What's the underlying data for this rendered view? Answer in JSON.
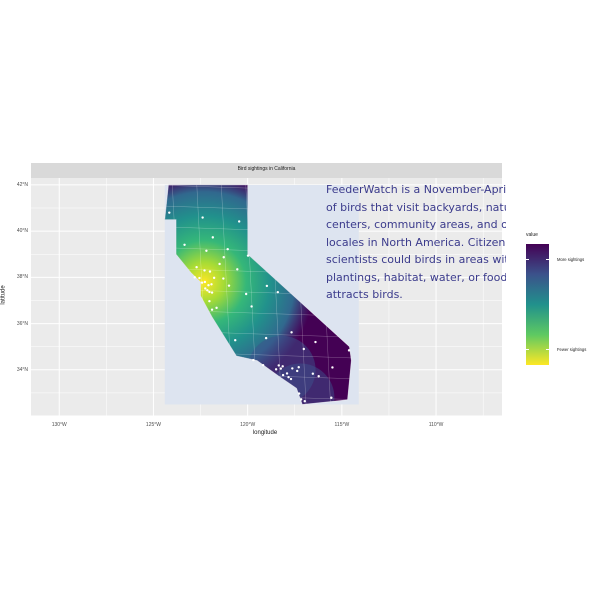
{
  "title": "Bird sightings in California",
  "annotation": "FeederWatch is a November-April sur\nof birds that visit backyards, nature\ncenters, community areas, and other\nlocales in North America. Citizen\nscientists could birds in areas with\nplantings, habitat, water, or food that\nattracts birds.",
  "axes": {
    "x_title": "longitude",
    "y_title": "latitude",
    "x_ticks": [
      "130°W",
      "125°W",
      "120°W",
      "115°W",
      "110°W"
    ],
    "y_ticks": [
      "42°N",
      "40°N",
      "38°N",
      "36°N",
      "34°N"
    ]
  },
  "legend": {
    "title": "value",
    "labels": [
      "More sightings",
      "Fewer sightings"
    ],
    "colors": [
      "#440154",
      "#3b528b",
      "#21918c",
      "#5ec962",
      "#fde725"
    ]
  },
  "colors": {
    "panel_background": "#ebebeb",
    "bbox_fill": "#dde4f0",
    "point_color": "#ffffff"
  },
  "chart_data": {
    "type": "heatmap",
    "title": "Bird sightings in California",
    "xlabel": "longitude",
    "ylabel": "latitude",
    "xlim": [
      -131.5,
      -106.5
    ],
    "ylim": [
      32,
      42.3
    ],
    "bbox": {
      "lon": [
        -124.4,
        -114.1
      ],
      "lat": [
        32.5,
        42.0
      ]
    },
    "hotspot": {
      "lon": -122.3,
      "lat": 37.8
    },
    "secondary_hotspots": [
      {
        "lon": -118.2,
        "lat": 34.0
      },
      {
        "lon": -117.2,
        "lat": 32.8
      }
    ],
    "state_outline": [
      [
        -124.2,
        42.0
      ],
      [
        -120.0,
        42.0
      ],
      [
        -120.0,
        39.0
      ],
      [
        -114.6,
        35.0
      ],
      [
        -114.5,
        34.4
      ],
      [
        -114.7,
        32.7
      ],
      [
        -117.1,
        32.5
      ],
      [
        -117.4,
        33.2
      ],
      [
        -118.3,
        33.7
      ],
      [
        -119.5,
        34.4
      ],
      [
        -120.6,
        34.6
      ],
      [
        -121.9,
        36.3
      ],
      [
        -122.5,
        37.2
      ],
      [
        -122.5,
        37.8
      ],
      [
        -123.0,
        38.2
      ],
      [
        -123.8,
        39.0
      ],
      [
        -123.8,
        40.5
      ],
      [
        -124.4,
        40.5
      ],
      [
        -124.2,
        42.0
      ]
    ],
    "sightings": [
      [
        -122.27,
        37.8
      ],
      [
        -122.42,
        37.77
      ],
      [
        -121.89,
        37.34
      ],
      [
        -122.03,
        37.37
      ],
      [
        -122.14,
        37.44
      ],
      [
        -121.49,
        38.58
      ],
      [
        -122.71,
        38.44
      ],
      [
        -122.29,
        38.3
      ],
      [
        -122.81,
        38.0
      ],
      [
        -122.56,
        37.97
      ],
      [
        -121.29,
        37.95
      ],
      [
        -120.99,
        37.64
      ],
      [
        -119.79,
        36.74
      ],
      [
        -119.02,
        35.37
      ],
      [
        -118.24,
        34.05
      ],
      [
        -118.49,
        34.02
      ],
      [
        -118.14,
        34.15
      ],
      [
        -117.91,
        33.84
      ],
      [
        -117.83,
        33.68
      ],
      [
        -117.16,
        32.72
      ],
      [
        -117.27,
        32.97
      ],
      [
        -117.37,
        33.95
      ],
      [
        -117.29,
        34.11
      ],
      [
        -116.54,
        33.83
      ],
      [
        -119.7,
        34.42
      ],
      [
        -119.18,
        34.2
      ],
      [
        -120.66,
        35.28
      ],
      [
        -121.89,
        36.6
      ],
      [
        -121.65,
        36.68
      ],
      [
        -122.03,
        36.97
      ],
      [
        -121.85,
        39.73
      ],
      [
        -122.39,
        40.59
      ],
      [
        -124.16,
        40.8
      ],
      [
        -120.45,
        40.42
      ],
      [
        -121.27,
        38.87
      ],
      [
        -120.55,
        38.35
      ],
      [
        -119.98,
        38.94
      ],
      [
        -118.4,
        37.36
      ],
      [
        -117.02,
        34.9
      ],
      [
        -115.56,
        32.79
      ],
      [
        -116.97,
        32.64
      ],
      [
        -117.7,
        33.6
      ],
      [
        -118.12,
        33.77
      ],
      [
        -118.35,
        34.19
      ],
      [
        -121.92,
        37.7
      ],
      [
        -122.08,
        37.66
      ],
      [
        -122.25,
        37.52
      ],
      [
        -121.78,
        37.98
      ],
      [
        -122.0,
        38.25
      ],
      [
        -123.35,
        39.41
      ],
      [
        -122.19,
        39.15
      ],
      [
        -121.06,
        39.22
      ],
      [
        -120.08,
        37.28
      ],
      [
        -118.98,
        37.63
      ],
      [
        -117.63,
        34.06
      ],
      [
        -116.23,
        33.72
      ],
      [
        -115.5,
        34.1
      ],
      [
        -114.62,
        34.84
      ],
      [
        -116.4,
        35.2
      ],
      [
        -117.67,
        35.62
      ]
    ]
  }
}
